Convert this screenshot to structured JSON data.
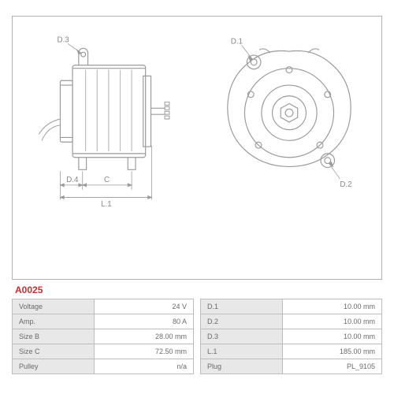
{
  "part_number": "A0025",
  "colors": {
    "stroke": "#9a9a9a",
    "stroke_light": "#bcbcbc",
    "dim_text": "#888888",
    "border": "#b0b0b0",
    "table_header_bg": "#e8e8e8",
    "partno": "#c72f2f",
    "bg": "#ffffff"
  },
  "side_view": {
    "labels": {
      "d3": "D.3",
      "d4": "D.4",
      "c": "C",
      "l1": "L.1"
    }
  },
  "front_view": {
    "labels": {
      "d1": "D.1",
      "d2": "D.2"
    }
  },
  "specs_left": [
    {
      "k": "Voltage",
      "v": "24 V"
    },
    {
      "k": "Amp.",
      "v": "80 A"
    },
    {
      "k": "Size B",
      "v": "28.00 mm"
    },
    {
      "k": "Size C",
      "v": "72.50 mm"
    },
    {
      "k": "Pulley",
      "v": "n/a"
    }
  ],
  "specs_right": [
    {
      "k": "D.1",
      "v": "10.00 mm"
    },
    {
      "k": "D.2",
      "v": "10.00 mm"
    },
    {
      "k": "D.3",
      "v": "10.00 mm"
    },
    {
      "k": "L.1",
      "v": "185.00 mm"
    },
    {
      "k": "Plug",
      "v": "PL_9105"
    }
  ]
}
